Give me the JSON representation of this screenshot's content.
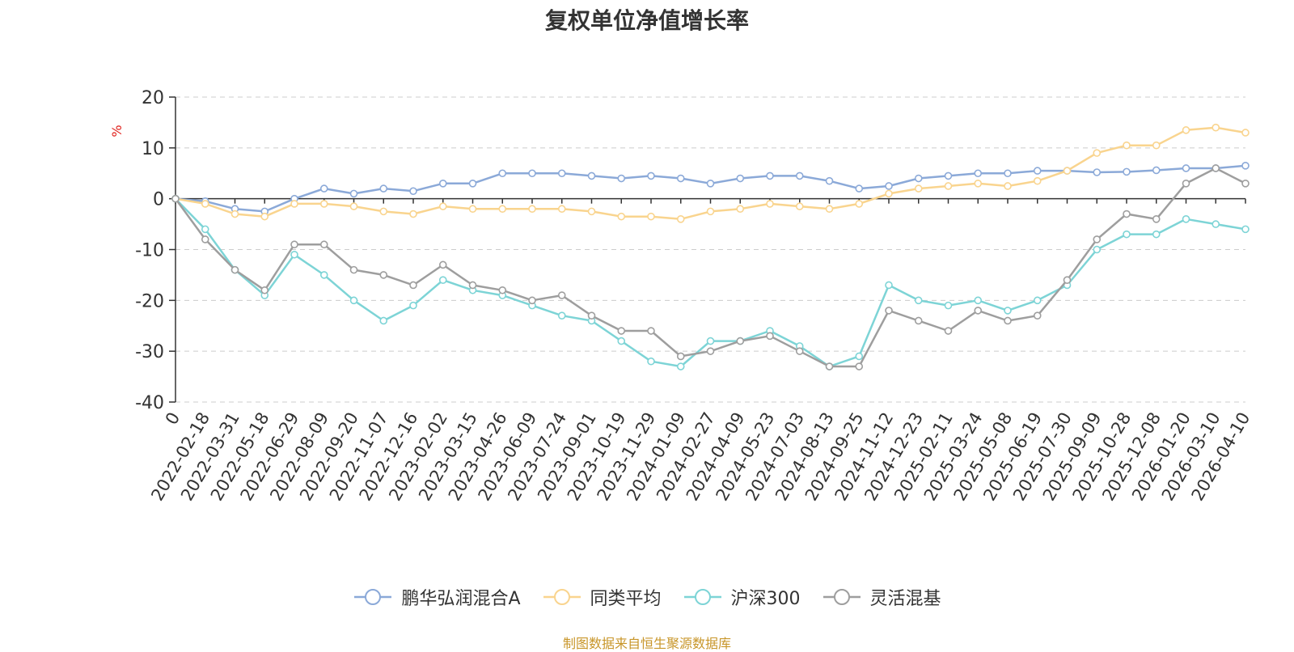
{
  "chart_data": {
    "type": "line",
    "title": "复权单位净值增长率",
    "ylabel": "%",
    "xlabel": "",
    "ylim": [
      -40,
      20
    ],
    "yticks": [
      20,
      10,
      0,
      -10,
      -20,
      -30,
      -40
    ],
    "grid": true,
    "legend_position": "bottom",
    "categories": [
      "0",
      "2022-02-18",
      "2022-03-31",
      "2022-05-18",
      "2022-06-29",
      "2022-08-09",
      "2022-09-20",
      "2022-11-07",
      "2022-12-16",
      "2023-02-02",
      "2023-03-15",
      "2023-04-26",
      "2023-06-09",
      "2023-07-24",
      "2023-09-01",
      "2023-10-19",
      "2023-11-29",
      "2024-01-09",
      "2024-02-27",
      "2024-04-09",
      "2024-05-23",
      "2024-07-03",
      "2024-08-13",
      "2024-09-25",
      "2024-11-12",
      "2024-12-23",
      "2025-02-11",
      "2025-03-24",
      "2025-05-08",
      "2025-06-19",
      "2025-07-30",
      "2025-09-09",
      "2025-10-28",
      "2025-12-08",
      "2026-01-20",
      "2026-03-10",
      "2026-04-10"
    ],
    "series": [
      {
        "name": "鹏华弘润混合A",
        "color": "#8ba9d8",
        "values": [
          0,
          -0.5,
          -2,
          -2.5,
          0,
          2,
          1,
          2,
          1.5,
          3,
          3,
          5,
          5,
          5,
          4.5,
          4,
          4.5,
          4,
          3,
          4,
          4.5,
          4.5,
          3.5,
          2,
          2.5,
          4,
          4.5,
          5,
          5,
          5.5,
          5.5,
          5.2,
          5.3,
          5.6,
          6,
          6,
          6.5
        ]
      },
      {
        "name": "同类平均",
        "color": "#f9d48e",
        "values": [
          0,
          -1,
          -3,
          -3.5,
          -1,
          -1,
          -1.5,
          -2.5,
          -3,
          -1.5,
          -2,
          -2,
          -2,
          -2,
          -2.5,
          -3.5,
          -3.5,
          -4,
          -2.5,
          -2,
          -1,
          -1.5,
          -2,
          -1,
          1,
          2,
          2.5,
          3,
          2.5,
          3.5,
          5.5,
          9,
          10.5,
          10.5,
          13.5,
          14,
          13
        ]
      },
      {
        "name": "沪深300",
        "color": "#7dd4d6",
        "values": [
          0,
          -6,
          -14,
          -19,
          -11,
          -15,
          -20,
          -24,
          -21,
          -16,
          -18,
          -19,
          -21,
          -23,
          -24,
          -28,
          -32,
          -33,
          -28,
          -28,
          -26,
          -29,
          -33,
          -31,
          -17,
          -20,
          -21,
          -20,
          -22,
          -20,
          -17,
          -10,
          -7,
          -7,
          -4,
          -5,
          -6
        ]
      },
      {
        "name": "灵活混基",
        "color": "#9e9e9e",
        "values": [
          0,
          -8,
          -14,
          -18,
          -9,
          -9,
          -14,
          -15,
          -17,
          -13,
          -17,
          -18,
          -20,
          -19,
          -23,
          -26,
          -26,
          -31,
          -30,
          -28,
          -27,
          -30,
          -33,
          -33,
          -22,
          -24,
          -26,
          -22,
          -24,
          -23,
          -16,
          -8,
          -3,
          -4,
          3,
          6,
          3
        ]
      }
    ]
  },
  "footer": {
    "source": "制图数据来自恒生聚源数据库"
  }
}
